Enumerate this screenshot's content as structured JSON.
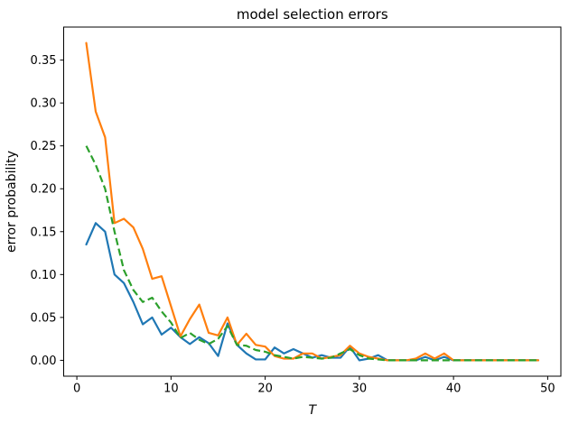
{
  "figure": {
    "title": "model selection errors",
    "xlabel": "T",
    "ylabel": "error probability"
  },
  "chart_data": {
    "type": "line",
    "title": "model selection errors",
    "xlabel": "T",
    "ylabel": "error probability",
    "grid": false,
    "legend": null,
    "xlim": [
      -1.4,
      51.4
    ],
    "ylim": [
      -0.0185,
      0.3885
    ],
    "xticks": {
      "values": [
        0,
        10,
        20,
        30,
        40,
        50
      ],
      "labels": [
        "0",
        "10",
        "20",
        "30",
        "40",
        "50"
      ]
    },
    "yticks": {
      "values": [
        0.0,
        0.05,
        0.1,
        0.15,
        0.2,
        0.25,
        0.3,
        0.35
      ],
      "labels": [
        "0.00",
        "0.05",
        "0.10",
        "0.15",
        "0.20",
        "0.25",
        "0.30",
        "0.35"
      ]
    },
    "x": [
      1,
      2,
      3,
      4,
      5,
      6,
      7,
      8,
      9,
      10,
      11,
      12,
      13,
      14,
      15,
      16,
      17,
      18,
      19,
      20,
      21,
      22,
      23,
      24,
      25,
      26,
      27,
      28,
      29,
      30,
      31,
      32,
      33,
      34,
      35,
      36,
      37,
      38,
      39,
      40,
      41,
      42,
      43,
      44,
      45,
      46,
      47,
      48,
      49
    ],
    "series": [
      {
        "name": "blue-solid",
        "color": "#1f77b4",
        "linestyle": "solid",
        "linewidth": 2.2,
        "values": [
          0.135,
          0.16,
          0.15,
          0.1,
          0.09,
          0.068,
          0.042,
          0.05,
          0.03,
          0.038,
          0.027,
          0.019,
          0.027,
          0.02,
          0.005,
          0.043,
          0.018,
          0.008,
          0.001,
          0.001,
          0.015,
          0.008,
          0.013,
          0.008,
          0.003,
          0.006,
          0.003,
          0.003,
          0.016,
          0.0,
          0.002,
          0.006,
          0.0,
          0.0,
          0.0,
          0.0,
          0.004,
          0.0,
          0.004,
          0.0,
          0.0,
          0.0,
          0.0,
          0.0,
          0.0,
          0.0,
          0.0,
          0.0,
          0.0
        ]
      },
      {
        "name": "orange-solid",
        "color": "#ff7f0e",
        "linestyle": "solid",
        "linewidth": 2.2,
        "values": [
          0.37,
          0.29,
          0.26,
          0.16,
          0.165,
          0.155,
          0.13,
          0.095,
          0.098,
          0.063,
          0.028,
          0.048,
          0.065,
          0.032,
          0.029,
          0.05,
          0.018,
          0.031,
          0.018,
          0.016,
          0.005,
          0.002,
          0.002,
          0.008,
          0.008,
          0.002,
          0.004,
          0.006,
          0.017,
          0.008,
          0.004,
          0.002,
          0.0,
          0.0,
          0.0,
          0.002,
          0.008,
          0.002,
          0.008,
          0.0,
          0.0,
          0.0,
          0.0,
          0.0,
          0.0,
          0.0,
          0.0,
          0.0,
          0.0
        ]
      },
      {
        "name": "green-dashed",
        "color": "#2ca02c",
        "linestyle": "dashed",
        "linewidth": 2.2,
        "values": [
          0.25,
          0.228,
          0.2,
          0.15,
          0.105,
          0.082,
          0.068,
          0.073,
          0.057,
          0.044,
          0.026,
          0.032,
          0.024,
          0.019,
          0.025,
          0.04,
          0.018,
          0.017,
          0.012,
          0.01,
          0.006,
          0.004,
          0.002,
          0.004,
          0.003,
          0.002,
          0.003,
          0.008,
          0.013,
          0.006,
          0.002,
          0.001,
          0.0,
          0.0,
          0.0,
          0.0,
          0.0,
          0.0,
          0.0,
          0.0,
          0.0,
          0.0,
          0.0,
          0.0,
          0.0,
          0.0,
          0.0,
          0.0,
          0.0
        ]
      }
    ]
  }
}
